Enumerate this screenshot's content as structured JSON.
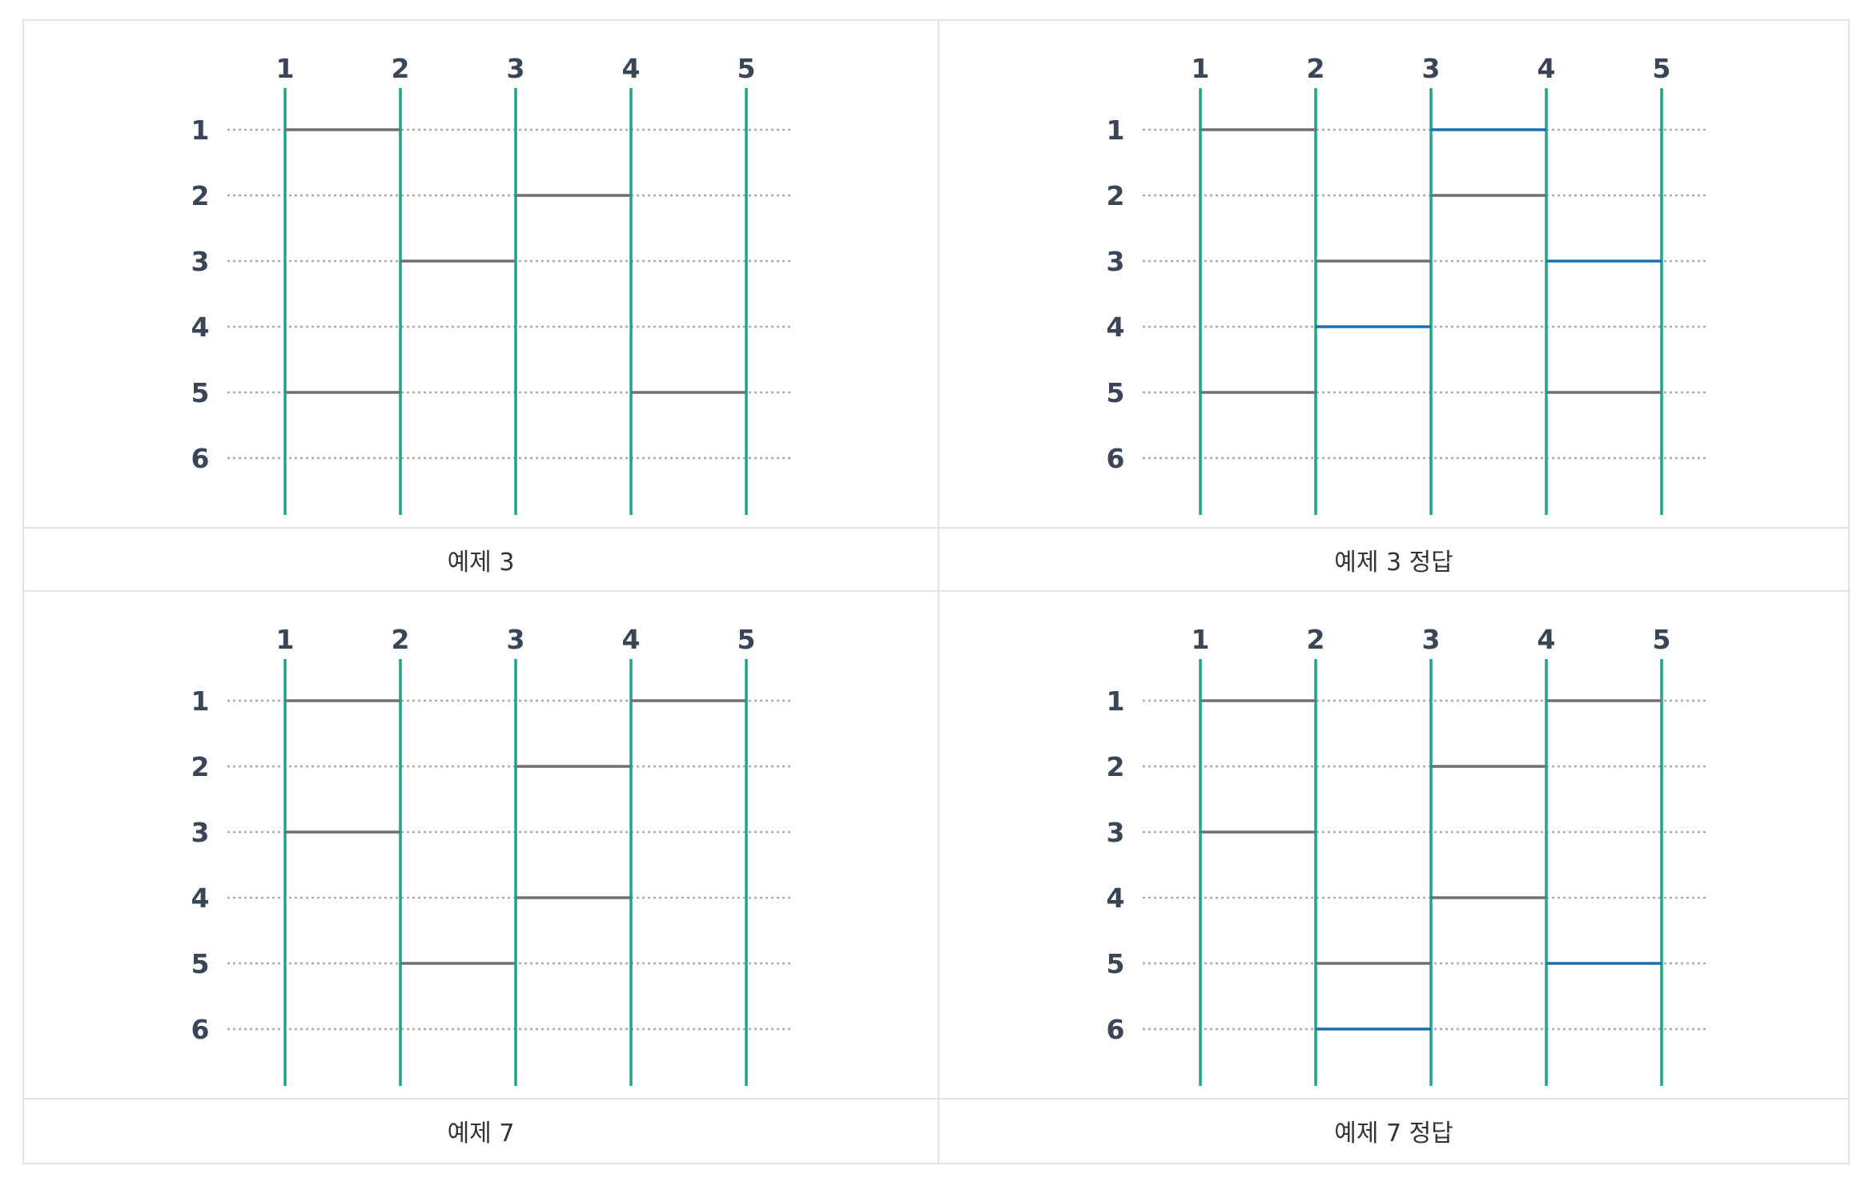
{
  "colors": {
    "vertical_line": "#1aa88a",
    "rung": "#707070",
    "answer_rung": "#1a6fb0",
    "grid_row": "#aaaaaa",
    "label": "#3a4558"
  },
  "panels": [
    {
      "caption": "예제 3",
      "vertical_labels": [
        "1",
        "2",
        "3",
        "4",
        "5"
      ],
      "row_labels": [
        "1",
        "2",
        "3",
        "4",
        "5",
        "6"
      ],
      "rungs": [
        {
          "row": 1,
          "from": 1,
          "to": 2,
          "added": false
        },
        {
          "row": 2,
          "from": 3,
          "to": 4,
          "added": false
        },
        {
          "row": 3,
          "from": 2,
          "to": 3,
          "added": false
        },
        {
          "row": 5,
          "from": 1,
          "to": 2,
          "added": false
        },
        {
          "row": 5,
          "from": 4,
          "to": 5,
          "added": false
        }
      ]
    },
    {
      "caption": "예제 3 정답",
      "vertical_labels": [
        "1",
        "2",
        "3",
        "4",
        "5"
      ],
      "row_labels": [
        "1",
        "2",
        "3",
        "4",
        "5",
        "6"
      ],
      "rungs": [
        {
          "row": 1,
          "from": 1,
          "to": 2,
          "added": false
        },
        {
          "row": 1,
          "from": 3,
          "to": 4,
          "added": true
        },
        {
          "row": 2,
          "from": 3,
          "to": 4,
          "added": false
        },
        {
          "row": 3,
          "from": 2,
          "to": 3,
          "added": false
        },
        {
          "row": 3,
          "from": 4,
          "to": 5,
          "added": true
        },
        {
          "row": 4,
          "from": 2,
          "to": 3,
          "added": true
        },
        {
          "row": 5,
          "from": 1,
          "to": 2,
          "added": false
        },
        {
          "row": 5,
          "from": 4,
          "to": 5,
          "added": false
        }
      ]
    },
    {
      "caption": "예제 7",
      "vertical_labels": [
        "1",
        "2",
        "3",
        "4",
        "5"
      ],
      "row_labels": [
        "1",
        "2",
        "3",
        "4",
        "5",
        "6"
      ],
      "rungs": [
        {
          "row": 1,
          "from": 1,
          "to": 2,
          "added": false
        },
        {
          "row": 1,
          "from": 4,
          "to": 5,
          "added": false
        },
        {
          "row": 2,
          "from": 3,
          "to": 4,
          "added": false
        },
        {
          "row": 3,
          "from": 1,
          "to": 2,
          "added": false
        },
        {
          "row": 4,
          "from": 3,
          "to": 4,
          "added": false
        },
        {
          "row": 5,
          "from": 2,
          "to": 3,
          "added": false
        }
      ]
    },
    {
      "caption": "예제 7 정답",
      "vertical_labels": [
        "1",
        "2",
        "3",
        "4",
        "5"
      ],
      "row_labels": [
        "1",
        "2",
        "3",
        "4",
        "5",
        "6"
      ],
      "rungs": [
        {
          "row": 1,
          "from": 1,
          "to": 2,
          "added": false
        },
        {
          "row": 1,
          "from": 4,
          "to": 5,
          "added": false
        },
        {
          "row": 2,
          "from": 3,
          "to": 4,
          "added": false
        },
        {
          "row": 3,
          "from": 1,
          "to": 2,
          "added": false
        },
        {
          "row": 4,
          "from": 3,
          "to": 4,
          "added": false
        },
        {
          "row": 5,
          "from": 2,
          "to": 3,
          "added": false
        },
        {
          "row": 5,
          "from": 4,
          "to": 5,
          "added": true
        },
        {
          "row": 6,
          "from": 2,
          "to": 3,
          "added": true
        }
      ]
    }
  ]
}
